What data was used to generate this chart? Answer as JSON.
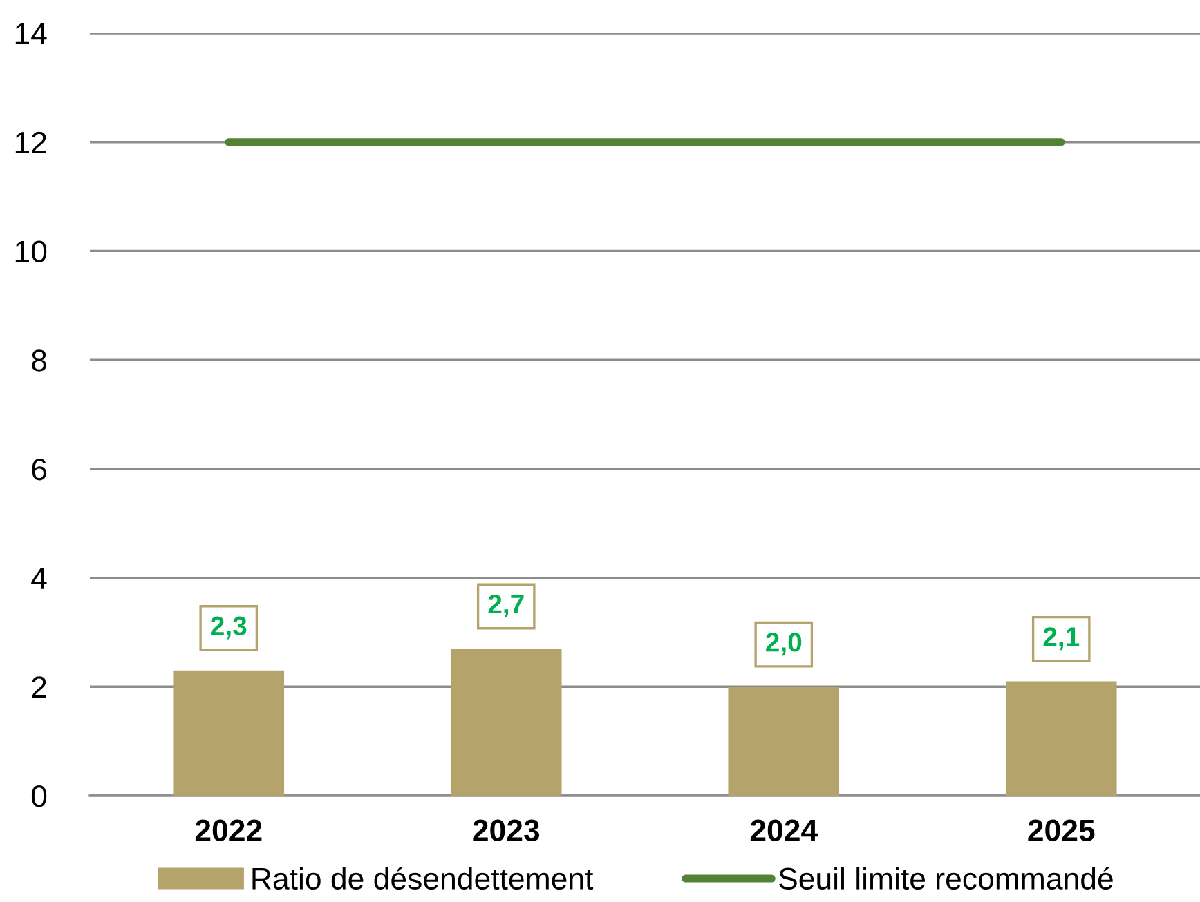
{
  "chart_data": {
    "type": "bar",
    "categories": [
      "2022",
      "2023",
      "2024",
      "2025"
    ],
    "series": [
      {
        "name": "Ratio de désendettement",
        "color": "#b4a36b",
        "values": [
          2.3,
          2.7,
          2.0,
          2.1
        ],
        "value_labels": [
          "2,3",
          "2,7",
          "2,0",
          "2,1"
        ]
      },
      {
        "name": "Seuil limite recommandé",
        "type": "line",
        "color": "#548235",
        "values": [
          12,
          12,
          12,
          12
        ]
      }
    ],
    "ylim": [
      0,
      14
    ],
    "yticks": [
      0,
      2,
      4,
      6,
      8,
      10,
      12,
      14
    ],
    "grid": "y",
    "legend": "bottom",
    "marker": "none"
  }
}
